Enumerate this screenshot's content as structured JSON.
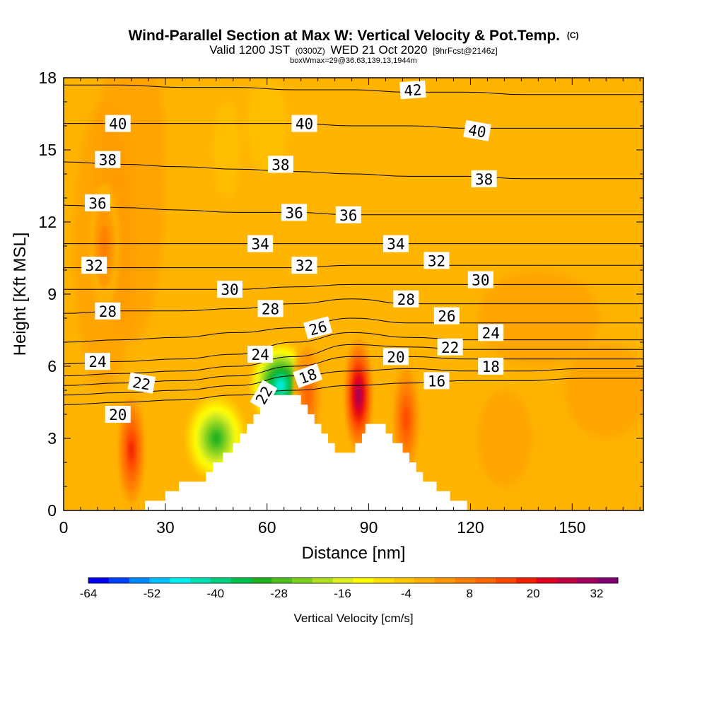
{
  "title": {
    "main": "Wind-Parallel Section at Max W: Vertical Velocity & Pot.Temp.",
    "main_unit": "(C)",
    "valid_a": "Valid 1200 JST",
    "valid_z": "(0300Z)",
    "valid_b": "WED 21 Oct 2020",
    "fcst": "[9hrFcst@2146z]",
    "box": "boxWmax=29@36.63,139.13,1944m"
  },
  "chart_data": {
    "type": "heatmap",
    "subtype": "cross-section contour",
    "xlabel": "Distance [nm]",
    "ylabel": "Height [Kft MSL]",
    "xlim": [
      0,
      171
    ],
    "ylim": [
      0,
      18
    ],
    "xticks": [
      0,
      30,
      60,
      90,
      120,
      150
    ],
    "yticks": [
      0,
      3,
      6,
      9,
      12,
      15,
      18
    ],
    "grid": false,
    "background_value_range": "0 to 4 cm/s",
    "colorbar": {
      "title": "Vertical Velocity [cm/s]",
      "ticks": [
        -64,
        -52,
        -40,
        -28,
        -16,
        -4,
        8,
        20,
        32
      ],
      "min": -64,
      "max": 36,
      "step": 4,
      "colors": [
        "#0000f0",
        "#0040ff",
        "#0088ff",
        "#00c0ff",
        "#00f0f0",
        "#00e0b0",
        "#00d080",
        "#00c050",
        "#20b020",
        "#50c020",
        "#80d020",
        "#b0e020",
        "#e0f020",
        "#ffff00",
        "#ffe000",
        "#ffc800",
        "#ffb000",
        "#ff9800",
        "#ff8000",
        "#ff6800",
        "#ff4800",
        "#f02000",
        "#e00020",
        "#c00040",
        "#a00060",
        "#800070"
      ]
    },
    "terrain_profile": {
      "x_nm": [
        0,
        23,
        24,
        29,
        30,
        33,
        34,
        37,
        40,
        42,
        44,
        47,
        50,
        52,
        54,
        56,
        58,
        60,
        62,
        63,
        65,
        70,
        72,
        74,
        76,
        78,
        80,
        82,
        85,
        86,
        88,
        89,
        91,
        94,
        95,
        97,
        99,
        100,
        102,
        104,
        106,
        108,
        110,
        112,
        114,
        116,
        118,
        119,
        120,
        171
      ],
      "z_kft": [
        0,
        0,
        0.4,
        0.4,
        0.8,
        0.8,
        1.2,
        1.2,
        1.2,
        1.6,
        2.0,
        2.4,
        2.8,
        3.2,
        3.6,
        4.0,
        4.4,
        4.8,
        4.8,
        4.8,
        4.8,
        4.4,
        4.0,
        3.6,
        3.2,
        2.8,
        2.4,
        2.4,
        2.4,
        2.8,
        3.2,
        3.6,
        3.6,
        3.6,
        3.2,
        2.8,
        2.8,
        2.4,
        2.0,
        1.6,
        1.2,
        1.2,
        0.8,
        0.8,
        0.4,
        0.4,
        0.4,
        0.0,
        0.0,
        0.0
      ]
    },
    "w_features": [
      {
        "x_nm": 87,
        "z_kft": 4.8,
        "w_cms": 32
      },
      {
        "x_nm": 20,
        "z_kft": 2.5,
        "w_cms": 20
      },
      {
        "x_nm": 101,
        "z_kft": 3.8,
        "w_cms": 16
      },
      {
        "x_nm": 64,
        "z_kft": 5.2,
        "w_cms": -45
      },
      {
        "x_nm": 45,
        "z_kft": 3.0,
        "w_cms": -28
      },
      {
        "x_nm": 12,
        "z_kft": 11.0,
        "w_cms": 6
      },
      {
        "x_nm": 72,
        "z_kft": 4.8,
        "w_cms": 12
      }
    ],
    "isentropes": [
      {
        "theta": 16,
        "z": [
          4.4,
          4.5,
          4.6,
          4.8,
          5.0,
          5.2,
          5.3,
          5.4,
          5.4,
          5.5,
          5.5
        ]
      },
      {
        "theta": 18,
        "z": [
          4.8,
          4.9,
          5.0,
          5.2,
          5.6,
          5.8,
          5.9,
          5.8,
          5.8,
          5.9,
          5.9
        ]
      },
      {
        "theta": 20,
        "z": [
          5.2,
          5.3,
          5.4,
          5.6,
          6.0,
          6.4,
          6.4,
          6.3,
          6.3,
          6.3,
          6.3
        ]
      },
      {
        "theta": 22,
        "z": [
          5.6,
          5.7,
          5.8,
          6.0,
          6.4,
          6.9,
          6.8,
          6.7,
          6.7,
          6.7,
          6.7
        ]
      },
      {
        "theta": 24,
        "z": [
          6.1,
          6.2,
          6.3,
          6.5,
          7.0,
          7.4,
          7.2,
          7.1,
          7.1,
          7.1,
          7.1
        ]
      },
      {
        "theta": 26,
        "z": [
          7.0,
          7.1,
          7.2,
          7.4,
          7.6,
          8.0,
          7.8,
          7.8,
          7.8,
          7.8,
          7.8
        ]
      },
      {
        "theta": 28,
        "z": [
          8.2,
          8.3,
          8.3,
          8.4,
          8.6,
          8.8,
          8.6,
          8.6,
          8.6,
          8.6,
          8.6
        ]
      },
      {
        "theta": 30,
        "z": [
          9.2,
          9.2,
          9.2,
          9.2,
          9.3,
          9.4,
          9.4,
          9.4,
          9.4,
          9.4,
          9.4
        ]
      },
      {
        "theta": 32,
        "z": [
          10.1,
          10.1,
          10.1,
          10.1,
          10.1,
          10.2,
          10.2,
          10.2,
          10.2,
          10.2,
          10.2
        ]
      },
      {
        "theta": 34,
        "z": [
          11.1,
          11.1,
          11.1,
          11.1,
          11.1,
          11.1,
          11.1,
          11.1,
          11.1,
          11.1,
          11.1
        ]
      },
      {
        "theta": 36,
        "z": [
          12.7,
          12.6,
          12.5,
          12.4,
          12.4,
          12.3,
          12.3,
          12.3,
          12.3,
          12.3,
          12.3
        ]
      },
      {
        "theta": 38,
        "z": [
          14.5,
          14.4,
          14.3,
          14.2,
          14.1,
          14.0,
          13.9,
          13.9,
          13.8,
          13.8,
          13.8
        ]
      },
      {
        "theta": 40,
        "z": [
          16.1,
          16.1,
          16.1,
          16.1,
          16.1,
          16.0,
          16.0,
          15.9,
          15.9,
          15.9,
          15.9
        ]
      },
      {
        "theta": 42,
        "z": [
          17.7,
          17.7,
          17.6,
          17.6,
          17.5,
          17.5,
          17.4,
          17.4,
          17.3,
          17.3,
          17.3
        ]
      }
    ],
    "isentrope_x_nm": [
      0,
      17,
      34,
      51,
      68,
      85,
      102,
      119,
      136,
      153,
      171
    ],
    "contour_labels": [
      {
        "text": "40",
        "x_nm": 16,
        "z_kft": 16.1,
        "rot": 0
      },
      {
        "text": "40",
        "x_nm": 71,
        "z_kft": 16.1,
        "rot": 0
      },
      {
        "text": "40",
        "x_nm": 122,
        "z_kft": 15.8,
        "rot": 10
      },
      {
        "text": "42",
        "x_nm": 103,
        "z_kft": 17.5,
        "rot": -4
      },
      {
        "text": "38",
        "x_nm": 13,
        "z_kft": 14.6,
        "rot": 0
      },
      {
        "text": "38",
        "x_nm": 64,
        "z_kft": 14.4,
        "rot": 0
      },
      {
        "text": "38",
        "x_nm": 124,
        "z_kft": 13.8,
        "rot": 0
      },
      {
        "text": "36",
        "x_nm": 10,
        "z_kft": 12.8,
        "rot": 0
      },
      {
        "text": "36",
        "x_nm": 68,
        "z_kft": 12.4,
        "rot": 0
      },
      {
        "text": "36",
        "x_nm": 84,
        "z_kft": 12.3,
        "rot": 0
      },
      {
        "text": "34",
        "x_nm": 58,
        "z_kft": 11.1,
        "rot": 0
      },
      {
        "text": "34",
        "x_nm": 98,
        "z_kft": 11.1,
        "rot": 0
      },
      {
        "text": "32",
        "x_nm": 9,
        "z_kft": 10.2,
        "rot": 0
      },
      {
        "text": "32",
        "x_nm": 71,
        "z_kft": 10.2,
        "rot": 0
      },
      {
        "text": "32",
        "x_nm": 110,
        "z_kft": 10.4,
        "rot": 0
      },
      {
        "text": "30",
        "x_nm": 49,
        "z_kft": 9.2,
        "rot": 0
      },
      {
        "text": "30",
        "x_nm": 123,
        "z_kft": 9.6,
        "rot": 0
      },
      {
        "text": "28",
        "x_nm": 13,
        "z_kft": 8.3,
        "rot": 0
      },
      {
        "text": "28",
        "x_nm": 61,
        "z_kft": 8.4,
        "rot": 0
      },
      {
        "text": "28",
        "x_nm": 101,
        "z_kft": 8.8,
        "rot": 0
      },
      {
        "text": "26",
        "x_nm": 75,
        "z_kft": 7.6,
        "rot": -15
      },
      {
        "text": "26",
        "x_nm": 113,
        "z_kft": 8.1,
        "rot": 0
      },
      {
        "text": "24",
        "x_nm": 10,
        "z_kft": 6.2,
        "rot": 0
      },
      {
        "text": "24",
        "x_nm": 58,
        "z_kft": 6.5,
        "rot": 0
      },
      {
        "text": "24",
        "x_nm": 126,
        "z_kft": 7.4,
        "rot": 0
      },
      {
        "text": "22",
        "x_nm": 23,
        "z_kft": 5.3,
        "rot": 10
      },
      {
        "text": "22",
        "x_nm": 59,
        "z_kft": 4.8,
        "rot": -60
      },
      {
        "text": "22",
        "x_nm": 114,
        "z_kft": 6.8,
        "rot": 0
      },
      {
        "text": "20",
        "x_nm": 16,
        "z_kft": 4.0,
        "rot": 0
      },
      {
        "text": "20",
        "x_nm": 98,
        "z_kft": 6.4,
        "rot": 0
      },
      {
        "text": "18",
        "x_nm": 72,
        "z_kft": 5.6,
        "rot": -20
      },
      {
        "text": "18",
        "x_nm": 126,
        "z_kft": 6.0,
        "rot": 0
      },
      {
        "text": "16",
        "x_nm": 110,
        "z_kft": 5.4,
        "rot": 0
      }
    ]
  }
}
